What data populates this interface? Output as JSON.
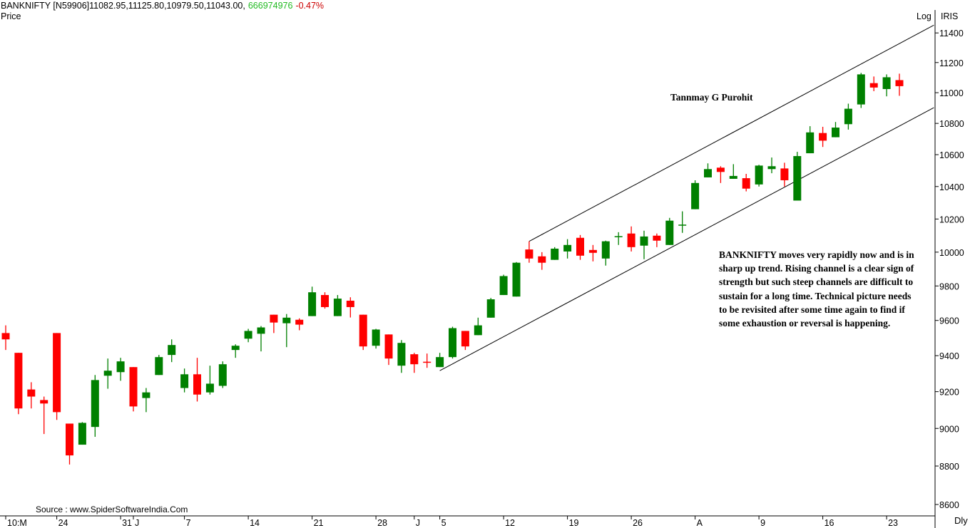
{
  "header": {
    "quote": "BANKNIFTY [N59906]11082.95,11125.80,10979.50,11043.00,",
    "volume": "666974976",
    "change": "-0.47%",
    "price_label": "Price",
    "log_label": "Log",
    "iris_label": "IRIS",
    "period_label": "Dly"
  },
  "source": "Source : www.SpiderSoftwareIndia.Com",
  "annotations": {
    "author": "Tannmay G Purohit",
    "note": "BANKNIFTY moves very rapidly now and is in sharp up trend. Rising channel is a clear sign of strength but such steep channels are difficult to sustain for a long time. Technical picture needs to be revisited after some time again to find if some exhaustion or reversal is happening."
  },
  "colors": {
    "up": "#008000",
    "down": "#ff0000",
    "volume": "#22bb22",
    "change": "#cc0000"
  },
  "chart_data": {
    "type": "candlestick",
    "symbol": "BANKNIFTY",
    "scale": "log",
    "ylim": [
      8560,
      11480
    ],
    "y_ticks": [
      8600,
      8800,
      9000,
      9200,
      9400,
      9600,
      9800,
      10000,
      10200,
      10400,
      10600,
      10800,
      11000,
      11200,
      11400
    ],
    "x_ticks": [
      {
        "label": "10:M",
        "index": 0
      },
      {
        "label": "24",
        "index": 4
      },
      {
        "label": "31",
        "index": 9
      },
      {
        "label": "J",
        "index": 10
      },
      {
        "label": "7",
        "index": 14
      },
      {
        "label": "14",
        "index": 19
      },
      {
        "label": "21",
        "index": 24
      },
      {
        "label": "28",
        "index": 29
      },
      {
        "label": "J",
        "index": 32
      },
      {
        "label": "5",
        "index": 34
      },
      {
        "label": "12",
        "index": 39
      },
      {
        "label": "19",
        "index": 44
      },
      {
        "label": "26",
        "index": 49
      },
      {
        "label": "A",
        "index": 54
      },
      {
        "label": "9",
        "index": 59
      },
      {
        "label": "16",
        "index": 64
      },
      {
        "label": "23",
        "index": 69
      }
    ],
    "ohlc": [
      [
        9528,
        9572,
        9432,
        9492
      ],
      [
        9416,
        9416,
        9077,
        9108
      ],
      [
        9212,
        9252,
        9108,
        9173
      ],
      [
        9154,
        9173,
        8970,
        9135
      ],
      [
        9528,
        9528,
        9046,
        9088
      ],
      [
        9026,
        9026,
        8808,
        8856
      ],
      [
        8913,
        9034,
        8913,
        9030
      ],
      [
        9008,
        9292,
        8955,
        9264
      ],
      [
        9288,
        9384,
        9216,
        9316
      ],
      [
        9308,
        9388,
        9260,
        9368
      ],
      [
        9336,
        9336,
        9092,
        9119
      ],
      [
        9165,
        9220,
        9088,
        9196
      ],
      [
        9292,
        9404,
        9292,
        9392
      ],
      [
        9404,
        9492,
        9364,
        9460
      ],
      [
        9220,
        9328,
        9196,
        9296
      ],
      [
        9296,
        9388,
        9146,
        9184
      ],
      [
        9196,
        9344,
        9184,
        9244
      ],
      [
        9232,
        9368,
        9220,
        9352
      ],
      [
        9432,
        9464,
        9388,
        9456
      ],
      [
        9496,
        9552,
        9476,
        9540
      ],
      [
        9524,
        9568,
        9424,
        9560
      ],
      [
        9633,
        9633,
        9528,
        9588
      ],
      [
        9584,
        9637,
        9448,
        9616
      ],
      [
        9604,
        9612,
        9544,
        9576
      ],
      [
        9625,
        9796,
        9625,
        9763
      ],
      [
        9747,
        9763,
        9668,
        9677
      ],
      [
        9625,
        9747,
        9625,
        9726
      ],
      [
        9714,
        9734,
        9617,
        9677
      ],
      [
        9633,
        9633,
        9432,
        9452
      ],
      [
        9456,
        9552,
        9440,
        9548
      ],
      [
        9520,
        9520,
        9348,
        9384
      ],
      [
        9344,
        9488,
        9304,
        9472
      ],
      [
        9408,
        9416,
        9304,
        9352
      ],
      [
        9366,
        9412,
        9332,
        9362
      ],
      [
        9336,
        9416,
        9336,
        9392
      ],
      [
        9392,
        9564,
        9384,
        9556
      ],
      [
        9540,
        9540,
        9432,
        9452
      ],
      [
        9516,
        9616,
        9516,
        9572
      ],
      [
        9616,
        9730,
        9616,
        9722
      ],
      [
        9747,
        9866,
        9747,
        9858
      ],
      [
        9738,
        9941,
        9738,
        9937
      ],
      [
        10016,
        10065,
        9937,
        9962
      ],
      [
        9975,
        10000,
        9895,
        9937
      ],
      [
        9954,
        10030,
        9954,
        10021
      ],
      [
        10004,
        10078,
        9962,
        10043
      ],
      [
        10086,
        10103,
        9954,
        9979
      ],
      [
        10013,
        10043,
        9945,
        9996
      ],
      [
        9962,
        10069,
        9920,
        10065
      ],
      [
        10090,
        10120,
        10043,
        10096
      ],
      [
        10112,
        10155,
        10004,
        10030
      ],
      [
        10039,
        10129,
        9958,
        10094
      ],
      [
        10099,
        10112,
        10030,
        10069
      ],
      [
        10043,
        10207,
        10043,
        10190
      ],
      [
        10160,
        10247,
        10116,
        10166
      ],
      [
        10260,
        10439,
        10260,
        10422
      ],
      [
        10457,
        10545,
        10457,
        10509
      ],
      [
        10518,
        10527,
        10422,
        10491
      ],
      [
        10448,
        10540,
        10448,
        10466
      ],
      [
        10452,
        10479,
        10370,
        10387
      ],
      [
        10413,
        10536,
        10400,
        10531
      ],
      [
        10509,
        10582,
        10483,
        10527
      ],
      [
        10513,
        10549,
        10400,
        10439
      ],
      [
        10313,
        10618,
        10313,
        10591
      ],
      [
        10609,
        10782,
        10609,
        10742
      ],
      [
        10738,
        10778,
        10649,
        10689
      ],
      [
        10711,
        10809,
        10711,
        10773
      ],
      [
        10795,
        10928,
        10760,
        10895
      ],
      [
        10923,
        11131,
        10900,
        11121
      ],
      [
        11063,
        11107,
        11010,
        11034
      ],
      [
        11024,
        11121,
        10976,
        11102
      ],
      [
        11082.95,
        11125.8,
        10979.5,
        11043
      ]
    ],
    "trendlines": [
      {
        "name": "upper-channel",
        "points": [
          [
            41,
            10065
          ],
          [
            72.7,
            11453
          ]
        ]
      },
      {
        "name": "lower-channel",
        "points": [
          [
            34,
            9316
          ],
          [
            72.7,
            10902
          ]
        ]
      }
    ]
  }
}
